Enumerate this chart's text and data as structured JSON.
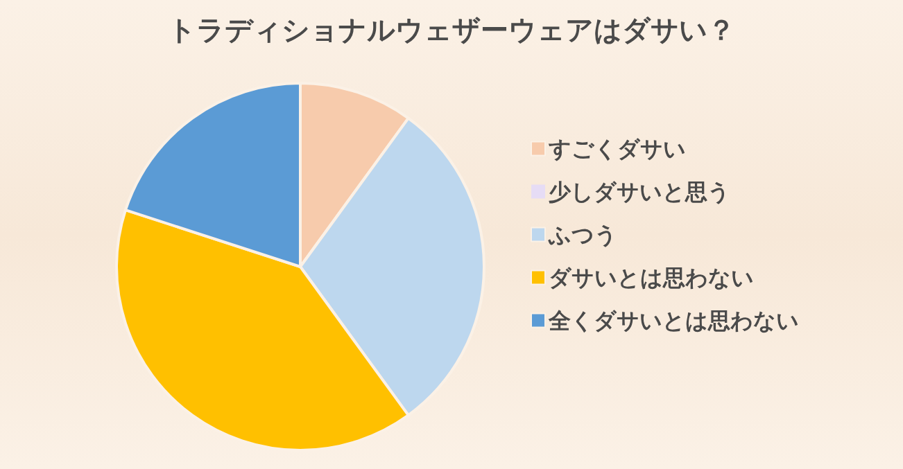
{
  "chart_data": {
    "type": "pie",
    "title": "トラディショナルウェザーウェアはダサい？",
    "categories": [
      "すごくダサい",
      "少しダサいと思う",
      "ふつう",
      "ダサいとは思わない",
      "全くダサいとは思わない"
    ],
    "values": [
      10,
      0,
      30,
      40,
      20
    ],
    "colors": [
      "#f7cbac",
      "#e6dcf5",
      "#bdd7ee",
      "#ffc000",
      "#5b9bd5"
    ],
    "legend": "right"
  }
}
